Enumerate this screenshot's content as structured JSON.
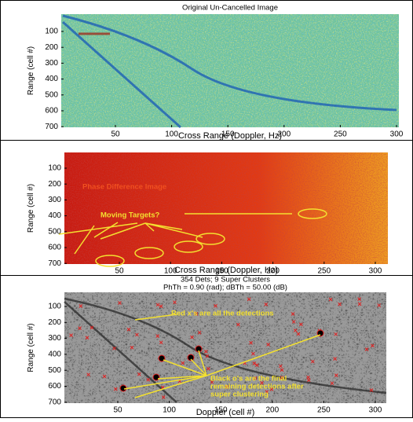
{
  "panels": [
    {
      "title": [
        "Original Un-Cancelled Image"
      ],
      "y_label": "Range (cell #)",
      "x_label": "Cross Range (Doppler, Hz)",
      "x_ticks": [
        "50",
        "100",
        "150",
        "200",
        "250",
        "300"
      ],
      "y_ticks": [
        "100",
        "200",
        "300",
        "400",
        "500",
        "600",
        "700"
      ],
      "annotations": []
    },
    {
      "title": [],
      "y_label": "Range (cell #)",
      "x_label": "Cross Range (Doppler, Hz)",
      "x_ticks": [
        "50",
        "100",
        "150",
        "200",
        "250",
        "300"
      ],
      "y_ticks": [
        "100",
        "200",
        "300",
        "400",
        "500",
        "600",
        "700"
      ],
      "annotations": [
        [
          "Phase Difference Image"
        ],
        [
          "Moving Targets?"
        ]
      ]
    },
    {
      "title": [
        "354 Dets; 9 Super Clusters",
        "PhTh = 0.90 (rad); dBTh = 50.00 (dB)"
      ],
      "y_label": "Range (cell #)",
      "x_label": "Doppler (cell #)",
      "x_ticks": [
        "50",
        "100",
        "150",
        "200",
        "250",
        "300"
      ],
      "y_ticks": [
        "100",
        "200",
        "300",
        "400",
        "500",
        "600",
        "700"
      ],
      "annotations": [
        [
          "Red x's are all the detections"
        ],
        [
          "Black o's are the final",
          "remaining detections after",
          "super clustering"
        ]
      ]
    }
  ]
}
